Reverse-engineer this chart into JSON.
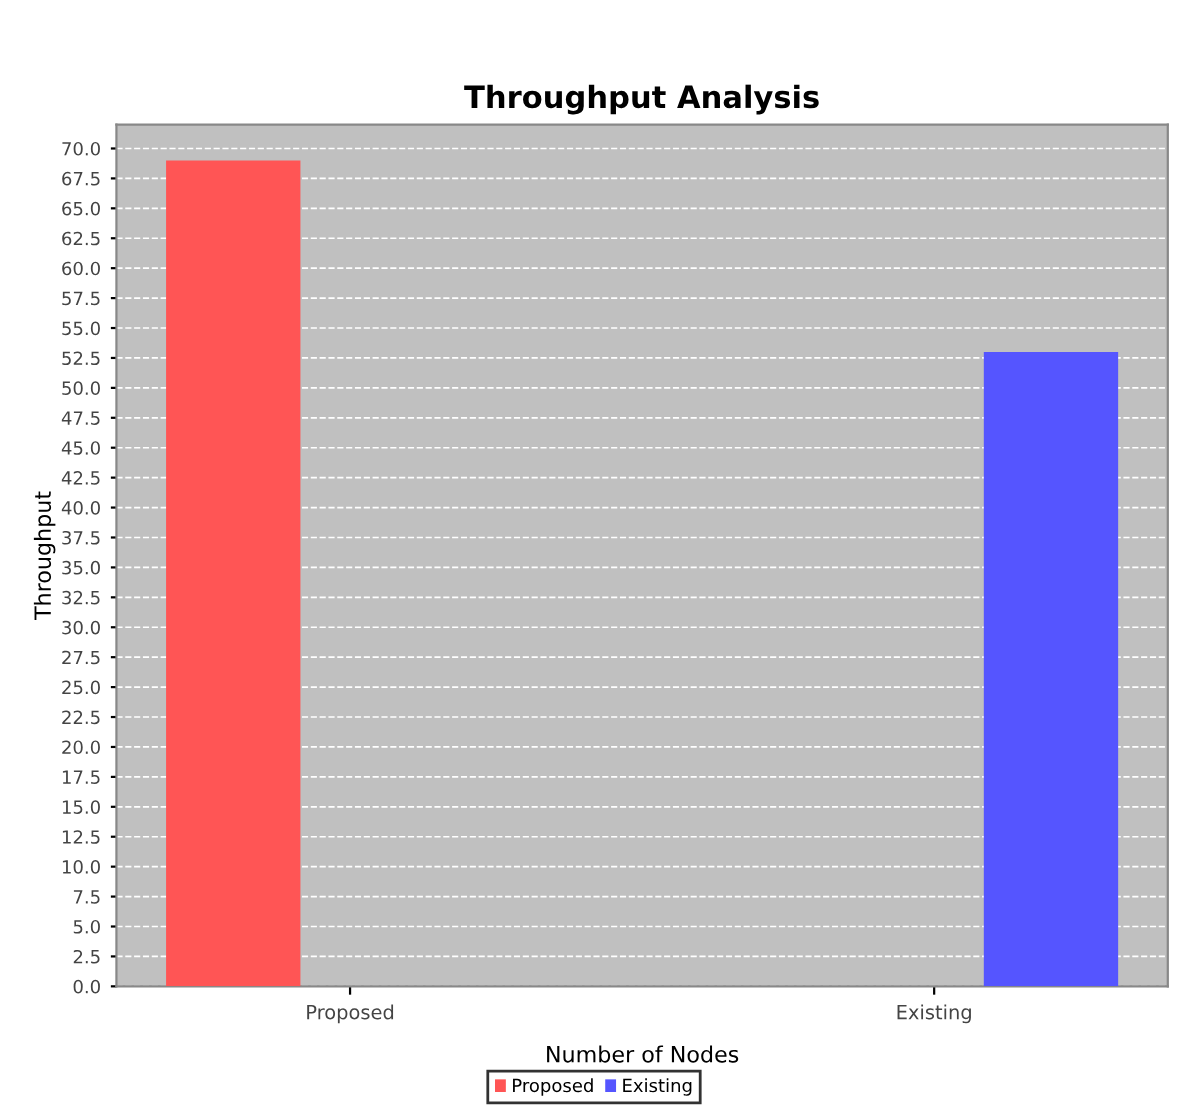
{
  "chart_data": {
    "type": "bar",
    "title": "Throughput Analysis",
    "xlabel": "Number of Nodes",
    "ylabel": "Throughput",
    "categories": [
      "Proposed",
      "Existing"
    ],
    "series": [
      {
        "name": "Proposed",
        "color": "#ff5555",
        "values": [
          69,
          null
        ]
      },
      {
        "name": "Existing",
        "color": "#5555ff",
        "values": [
          null,
          53
        ]
      }
    ],
    "ylim": [
      0,
      72
    ],
    "yticks": [
      {
        "value": 0,
        "label": "0.0"
      },
      {
        "value": 2.5,
        "label": "2.5"
      },
      {
        "value": 5,
        "label": "5.0"
      },
      {
        "value": 7.5,
        "label": "7.5"
      },
      {
        "value": 10,
        "label": "10.0"
      },
      {
        "value": 12.5,
        "label": "12.5"
      },
      {
        "value": 15,
        "label": "15.0"
      },
      {
        "value": 17.5,
        "label": "17.5"
      },
      {
        "value": 20,
        "label": "20.0"
      },
      {
        "value": 22.5,
        "label": "22.5"
      },
      {
        "value": 25,
        "label": "25.0"
      },
      {
        "value": 27.5,
        "label": "27.5"
      },
      {
        "value": 30,
        "label": "30.0"
      },
      {
        "value": 32.5,
        "label": "32.5"
      },
      {
        "value": 35,
        "label": "35.0"
      },
      {
        "value": 37.5,
        "label": "37.5"
      },
      {
        "value": 40,
        "label": "40.0"
      },
      {
        "value": 42.5,
        "label": "42.5"
      },
      {
        "value": 45,
        "label": "45.0"
      },
      {
        "value": 47.5,
        "label": "47.5"
      },
      {
        "value": 50,
        "label": "50.0"
      },
      {
        "value": 52.5,
        "label": "52.5"
      },
      {
        "value": 55,
        "label": "55.0"
      },
      {
        "value": 57.5,
        "label": "57.5"
      },
      {
        "value": 60,
        "label": "60.0"
      },
      {
        "value": 62.5,
        "label": "62.5"
      },
      {
        "value": 65,
        "label": "65.0"
      },
      {
        "value": 67.5,
        "label": "67.5"
      },
      {
        "value": 70,
        "label": "70.0"
      }
    ],
    "grid": "y",
    "legend": "bottom"
  }
}
